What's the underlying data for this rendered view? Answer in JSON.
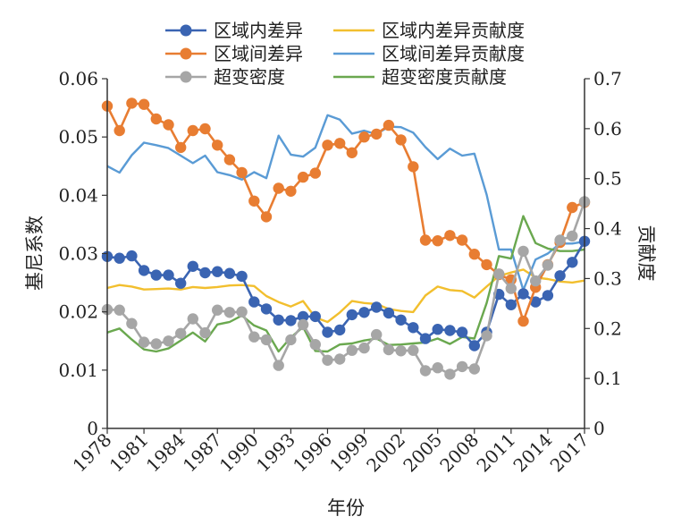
{
  "chart_data": {
    "type": "line",
    "title": "",
    "xlabel": "年份",
    "ylabel_left": "基尼系数",
    "ylabel_right": "贡献度",
    "x": [
      1978,
      1979,
      1980,
      1981,
      1982,
      1983,
      1984,
      1985,
      1986,
      1987,
      1988,
      1989,
      1990,
      1991,
      1992,
      1993,
      1994,
      1995,
      1996,
      1997,
      1998,
      1999,
      2000,
      2001,
      2002,
      2003,
      2004,
      2005,
      2006,
      2007,
      2008,
      2009,
      2010,
      2011,
      2012,
      2013,
      2014,
      2015,
      2016,
      2017
    ],
    "x_ticks": [
      1978,
      1981,
      1984,
      1987,
      1990,
      1993,
      1996,
      1999,
      2002,
      2005,
      2008,
      2011,
      2014,
      2017
    ],
    "xlim": [
      1978,
      2017
    ],
    "ylim_left": [
      0,
      0.06
    ],
    "ylim_right": [
      0,
      0.7
    ],
    "left_ticks": [
      "0",
      "0.01",
      "0.02",
      "0.03",
      "0.04",
      "0.05",
      "0.06"
    ],
    "right_ticks": [
      "0",
      "0.1",
      "0.2",
      "0.3",
      "0.4",
      "0.5",
      "0.6",
      "0.7"
    ],
    "legend_position": "top",
    "series": [
      {
        "name": "区域内差异",
        "axis": "left",
        "style": "marker",
        "color": "#3a64b2",
        "values": [
          0.0295,
          0.0292,
          0.0296,
          0.0271,
          0.0263,
          0.0263,
          0.0249,
          0.0278,
          0.0267,
          0.0269,
          0.0266,
          0.0261,
          0.0217,
          0.0205,
          0.0186,
          0.0185,
          0.0192,
          0.0192,
          0.0165,
          0.0169,
          0.0195,
          0.0199,
          0.0208,
          0.0198,
          0.0186,
          0.0173,
          0.0154,
          0.017,
          0.0168,
          0.0165,
          0.0142,
          0.0165,
          0.023,
          0.0212,
          0.0231,
          0.0217,
          0.0228,
          0.0262,
          0.0285,
          0.0321
        ]
      },
      {
        "name": "区域间差异",
        "axis": "left",
        "style": "marker",
        "color": "#e87d32",
        "values": [
          0.0553,
          0.0511,
          0.0558,
          0.0556,
          0.0531,
          0.0521,
          0.0482,
          0.0511,
          0.0514,
          0.0486,
          0.0461,
          0.0439,
          0.039,
          0.0363,
          0.0412,
          0.0407,
          0.0431,
          0.0438,
          0.0486,
          0.0489,
          0.0473,
          0.05,
          0.0505,
          0.052,
          0.0495,
          0.0449,
          0.0323,
          0.0322,
          0.0331,
          0.0323,
          0.0299,
          0.0281,
          0.0264,
          0.0255,
          0.0184,
          0.0242,
          0.0281,
          0.0319,
          0.0379,
          0.0388
        ]
      },
      {
        "name": "超变密度",
        "axis": "left",
        "style": "marker",
        "color": "#a6a6a6",
        "values": [
          0.0204,
          0.0203,
          0.018,
          0.0148,
          0.0145,
          0.015,
          0.0163,
          0.0188,
          0.0164,
          0.0203,
          0.0199,
          0.02,
          0.0157,
          0.0152,
          0.0108,
          0.0152,
          0.0178,
          0.0144,
          0.0117,
          0.0119,
          0.0134,
          0.0138,
          0.0161,
          0.0135,
          0.0133,
          0.0134,
          0.0099,
          0.0104,
          0.0093,
          0.0106,
          0.0102,
          0.0159,
          0.0265,
          0.024,
          0.0304,
          0.0253,
          0.028,
          0.0323,
          0.033,
          0.0389
        ]
      },
      {
        "name": "区域内差异贡献度",
        "axis": "right",
        "style": "line",
        "color": "#f2bf2e",
        "values": [
          0.281,
          0.287,
          0.284,
          0.278,
          0.279,
          0.28,
          0.278,
          0.283,
          0.281,
          0.283,
          0.286,
          0.287,
          0.285,
          0.265,
          0.253,
          0.244,
          0.255,
          0.222,
          0.213,
          0.232,
          0.255,
          0.251,
          0.249,
          0.239,
          0.235,
          0.233,
          0.266,
          0.284,
          0.277,
          0.275,
          0.262,
          0.284,
          0.305,
          0.312,
          0.318,
          0.302,
          0.299,
          0.294,
          0.292,
          0.296
        ]
      },
      {
        "name": "区域间差异贡献度",
        "axis": "right",
        "style": "line",
        "color": "#5a9bd5",
        "values": [
          0.525,
          0.512,
          0.547,
          0.572,
          0.567,
          0.561,
          0.546,
          0.531,
          0.546,
          0.513,
          0.507,
          0.498,
          0.513,
          0.501,
          0.586,
          0.548,
          0.544,
          0.562,
          0.627,
          0.618,
          0.59,
          0.596,
          0.589,
          0.604,
          0.603,
          0.592,
          0.563,
          0.539,
          0.56,
          0.546,
          0.55,
          0.468,
          0.358,
          0.358,
          0.277,
          0.338,
          0.35,
          0.37,
          0.37,
          0.374
        ]
      },
      {
        "name": "超变密度贡献度",
        "axis": "right",
        "style": "line",
        "color": "#6aa84f",
        "values": [
          0.192,
          0.2,
          0.178,
          0.158,
          0.154,
          0.16,
          0.176,
          0.192,
          0.174,
          0.208,
          0.213,
          0.226,
          0.206,
          0.196,
          0.154,
          0.182,
          0.203,
          0.155,
          0.154,
          0.168,
          0.17,
          0.176,
          0.18,
          0.167,
          0.168,
          0.17,
          0.172,
          0.18,
          0.169,
          0.183,
          0.18,
          0.251,
          0.345,
          0.34,
          0.425,
          0.371,
          0.36,
          0.355,
          0.355,
          0.358
        ]
      }
    ]
  }
}
